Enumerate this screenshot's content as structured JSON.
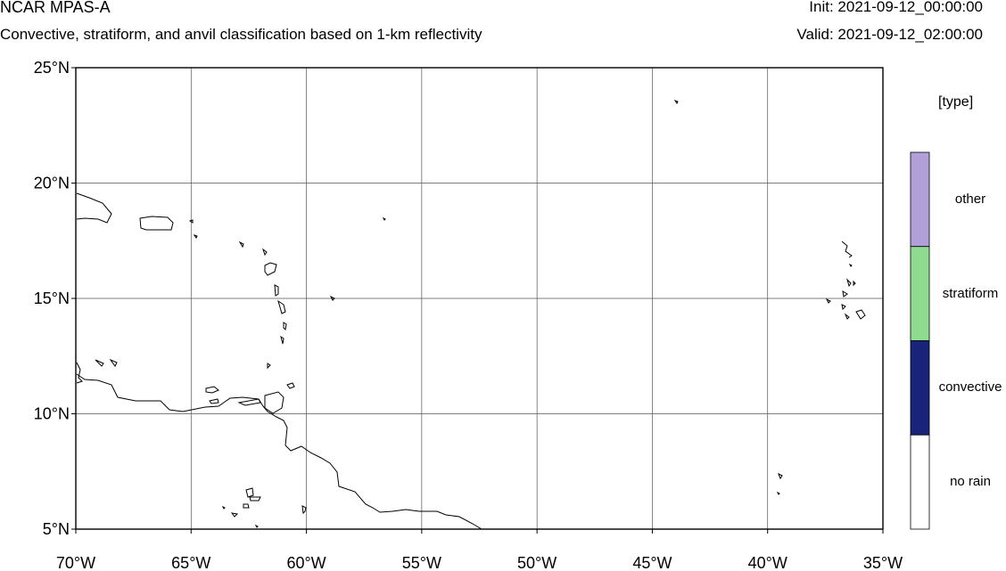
{
  "header": {
    "model_name": "NCAR MPAS-A",
    "description": "Convective, stratiform, and anvil classification based on 1-km reflectivity",
    "init_time": "Init: 2021-09-12_00:00:00",
    "valid_time": "Valid: 2021-09-12_02:00:00"
  },
  "map": {
    "lon_range": [
      -70,
      -35
    ],
    "lat_range": [
      5,
      25
    ],
    "lon_ticks": [
      {
        "value": -70,
        "label": "70°W"
      },
      {
        "value": -65,
        "label": "65°W"
      },
      {
        "value": -60,
        "label": "60°W"
      },
      {
        "value": -55,
        "label": "55°W"
      },
      {
        "value": -50,
        "label": "50°W"
      },
      {
        "value": -45,
        "label": "45°W"
      },
      {
        "value": -40,
        "label": "40°W"
      },
      {
        "value": -35,
        "label": "35°W"
      }
    ],
    "lat_ticks": [
      {
        "value": 25,
        "label": "25°N"
      },
      {
        "value": 20,
        "label": "20°N"
      },
      {
        "value": 15,
        "label": "15°N"
      },
      {
        "value": 10,
        "label": "10°N"
      },
      {
        "value": 5,
        "label": "5°N"
      }
    ],
    "gridlines": true
  },
  "legend": {
    "title": "[type]",
    "items": [
      {
        "label": "other",
        "color": "#b09fd9"
      },
      {
        "label": "stratiform",
        "color": "#8fdb8f"
      },
      {
        "label": "convective",
        "color": "#1a237a"
      },
      {
        "label": "no rain",
        "color": "#ffffff"
      }
    ]
  }
}
